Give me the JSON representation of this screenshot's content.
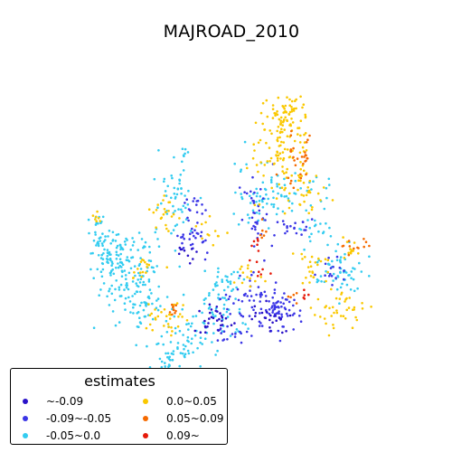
{
  "title": "MAJROAD_2010",
  "legend": {
    "title": "estimates",
    "placement": "lower-left",
    "items": [
      {
        "label": "~-0.09",
        "color": "#2a12c8"
      },
      {
        "label": "-0.09~-0.05",
        "color": "#3b36e6"
      },
      {
        "label": "-0.05~0.0",
        "color": "#33ccf0"
      },
      {
        "label": "0.0~0.05",
        "color": "#fac800"
      },
      {
        "label": "0.05~0.09",
        "color": "#f56a00"
      },
      {
        "label": "0.09~",
        "color": "#e61a0a"
      }
    ]
  }
}
